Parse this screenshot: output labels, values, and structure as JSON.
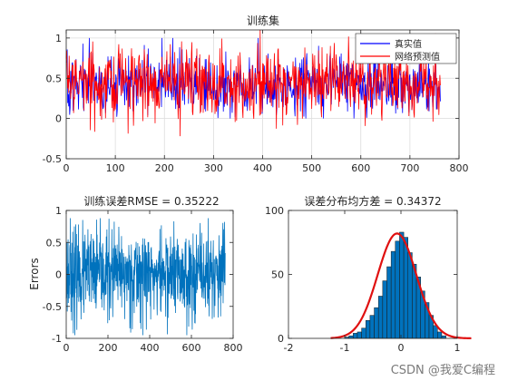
{
  "watermark": "CSDN @我爱C编程",
  "colors": {
    "true_series": "#0000ff",
    "pred_series": "#ff0000",
    "error_series": "#0072bd",
    "hist_fill": "#0072bd",
    "fit_curve": "#e01010",
    "axes": "#262626",
    "grid": "#dcdcdc"
  },
  "chart_data": [
    {
      "type": "line",
      "title": "训练集",
      "xlabel": "",
      "ylabel": "",
      "xlim": [
        0,
        800
      ],
      "ylim": [
        -0.5,
        1.1
      ],
      "xticks": [
        0,
        100,
        200,
        300,
        400,
        500,
        600,
        700,
        800
      ],
      "yticks": [
        -0.5,
        0,
        0.5,
        1
      ],
      "grid": true,
      "legend_position": "top-right",
      "n_points": 763,
      "series": [
        {
          "name": "真实值",
          "color": "#0000ff",
          "mean": 0.42,
          "min": 0.0,
          "max": 1.0
        },
        {
          "name": "网络预测值",
          "color": "#ff0000",
          "mean": 0.46,
          "min": -0.22,
          "max": 1.1
        }
      ]
    },
    {
      "type": "line",
      "title": "训练误差RMSE = 0.35222",
      "xlabel": "",
      "ylabel": "Errors",
      "xlim": [
        0,
        800
      ],
      "ylim": [
        -1,
        1
      ],
      "xticks": [
        0,
        200,
        400,
        600,
        800
      ],
      "yticks": [
        -1,
        -0.5,
        0,
        0.5,
        1
      ],
      "grid": false,
      "n_points": 763,
      "series": [
        {
          "color": "#0072bd",
          "mean": 0.0,
          "min": -0.95,
          "max": 0.88
        }
      ]
    },
    {
      "type": "bar",
      "title": "误差分布均方差 = 0.34372",
      "xlabel": "",
      "ylabel": "",
      "xlim": [
        -2,
        1
      ],
      "ylim": [
        0,
        100
      ],
      "xticks": [
        -2,
        -1,
        0,
        1
      ],
      "yticks": [
        0,
        50,
        100
      ],
      "grid": false,
      "bin_edges": [
        -1.0,
        -0.925,
        -0.85,
        -0.775,
        -0.7,
        -0.625,
        -0.55,
        -0.475,
        -0.4,
        -0.325,
        -0.25,
        -0.175,
        -0.1,
        -0.025,
        0.05,
        0.125,
        0.2,
        0.275,
        0.35,
        0.425,
        0.5,
        0.575,
        0.65,
        0.725,
        0.8
      ],
      "counts": [
        1,
        2,
        4,
        5,
        8,
        14,
        18,
        24,
        33,
        45,
        56,
        68,
        76,
        83,
        79,
        67,
        58,
        48,
        37,
        28,
        18,
        10,
        5,
        2
      ],
      "fit_curve": {
        "type": "normal",
        "mean": -0.07,
        "peak": 82,
        "color": "#e01010"
      }
    }
  ]
}
